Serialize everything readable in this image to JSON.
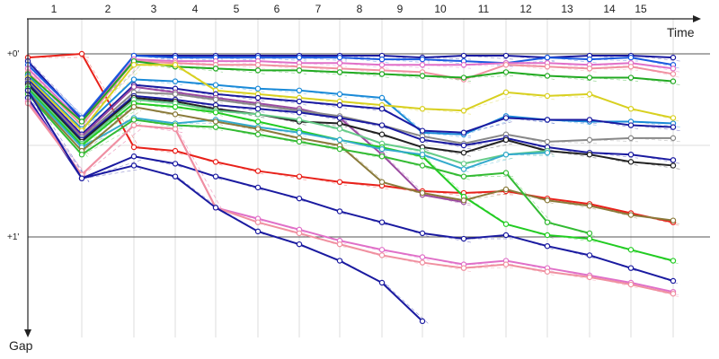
{
  "chart_data": {
    "type": "line",
    "title": "",
    "xlabel": "Time",
    "ylabel": "Gap",
    "x_tick_labels": [
      "1",
      "2",
      "3",
      "4",
      "5",
      "6",
      "7",
      "8",
      "9",
      "10",
      "11",
      "12",
      "13",
      "14",
      "15"
    ],
    "y_tick_labels": [
      {
        "value": 0,
        "label": "+0'"
      },
      {
        "value": 1,
        "label": "+1'"
      }
    ],
    "xlim": [
      1,
      16.0
    ],
    "ylim": [
      0,
      1.46
    ],
    "y_inverted": true,
    "grid": true,
    "legend": "none",
    "series": [
      {
        "color": "#e8211a",
        "values": [
          0.02,
          0.0,
          0.51,
          0.53,
          0.59,
          0.64,
          0.67,
          0.7,
          0.72,
          0.75,
          0.76,
          0.75,
          0.79,
          0.82,
          0.87,
          0.92
        ]
      },
      {
        "color": "#1a1aa0",
        "values": [
          0.04,
          0.36,
          0.01,
          0.01,
          0.01,
          0.01,
          0.01,
          0.01,
          0.01,
          0.02,
          0.01,
          0.01,
          0.02,
          0.01,
          0.01,
          0.02
        ]
      },
      {
        "color": "#1a5ae0",
        "values": [
          0.06,
          0.35,
          0.01,
          0.02,
          0.02,
          0.02,
          0.02,
          0.02,
          0.03,
          0.03,
          0.04,
          0.05,
          0.02,
          0.03,
          0.02,
          0.06
        ]
      },
      {
        "color": "#e070c8",
        "values": [
          0.08,
          0.37,
          0.03,
          0.04,
          0.04,
          0.04,
          0.05,
          0.05,
          0.06,
          0.06,
          0.06,
          0.05,
          0.05,
          0.06,
          0.05,
          0.08
        ]
      },
      {
        "color": "#f090a0",
        "values": [
          0.1,
          0.39,
          0.04,
          0.05,
          0.06,
          0.06,
          0.07,
          0.08,
          0.09,
          0.1,
          0.14,
          0.06,
          0.07,
          0.08,
          0.07,
          0.11
        ]
      },
      {
        "color": "#22aa22",
        "values": [
          0.11,
          0.37,
          0.04,
          0.07,
          0.08,
          0.09,
          0.09,
          0.1,
          0.11,
          0.12,
          0.13,
          0.1,
          0.12,
          0.13,
          0.13,
          0.15
        ]
      },
      {
        "color": "#1a8ad8",
        "values": [
          0.12,
          0.41,
          0.14,
          0.15,
          0.17,
          0.19,
          0.2,
          0.22,
          0.24,
          0.43,
          0.44,
          0.34,
          0.36,
          0.37,
          0.37,
          0.38
        ]
      },
      {
        "color": "#d8d020",
        "values": [
          0.13,
          0.42,
          0.06,
          0.06,
          0.2,
          0.22,
          0.24,
          0.26,
          0.28,
          0.3,
          0.31,
          0.21,
          0.23,
          0.22,
          0.3,
          0.35
        ]
      },
      {
        "color": "#1a1aa0",
        "values": [
          0.14,
          0.44,
          0.17,
          0.19,
          0.22,
          0.24,
          0.26,
          0.28,
          0.3,
          0.42,
          0.43,
          0.35,
          0.36,
          0.36,
          0.39,
          0.4
        ]
      },
      {
        "color": "#9a4aa0",
        "values": [
          0.15,
          0.45,
          0.18,
          0.21,
          0.24,
          0.27,
          0.3,
          0.35,
          0.55,
          0.77,
          0.81,
          0.0,
          0.0,
          0.0,
          0.0,
          0.0
        ]
      },
      {
        "color": "#888888",
        "values": [
          0.15,
          0.46,
          0.21,
          0.22,
          0.25,
          0.28,
          0.31,
          0.34,
          0.39,
          0.45,
          0.49,
          0.44,
          0.48,
          0.47,
          0.46,
          0.46
        ]
      },
      {
        "color": "#1a1aa0",
        "values": [
          0.16,
          0.47,
          0.23,
          0.25,
          0.28,
          0.3,
          0.32,
          0.35,
          0.39,
          0.47,
          0.5,
          0.46,
          0.51,
          0.54,
          0.55,
          0.58
        ]
      },
      {
        "color": "#222222",
        "values": [
          0.17,
          0.48,
          0.24,
          0.26,
          0.3,
          0.33,
          0.37,
          0.38,
          0.44,
          0.51,
          0.54,
          0.47,
          0.53,
          0.55,
          0.59,
          0.61
        ]
      },
      {
        "color": "#66cc88",
        "values": [
          0.18,
          0.49,
          0.25,
          0.27,
          0.31,
          0.33,
          0.36,
          0.41,
          0.49,
          0.53,
          0.6,
          0.55,
          0.53,
          0.0,
          0.0,
          0.0
        ]
      },
      {
        "color": "#22cc22",
        "values": [
          0.19,
          0.5,
          0.27,
          0.29,
          0.32,
          0.37,
          0.42,
          0.47,
          0.51,
          0.56,
          0.78,
          0.93,
          0.99,
          1.01,
          1.07,
          1.13
        ]
      },
      {
        "color": "#33aacc",
        "values": [
          0.2,
          0.51,
          0.35,
          0.38,
          0.36,
          0.4,
          0.43,
          0.47,
          0.52,
          0.55,
          0.63,
          0.55,
          0.54,
          0.0,
          0.0,
          0.0
        ]
      },
      {
        "color": "#8a7a3a",
        "values": [
          0.21,
          0.53,
          0.29,
          0.33,
          0.37,
          0.41,
          0.46,
          0.5,
          0.7,
          0.76,
          0.8,
          0.74,
          0.8,
          0.83,
          0.88,
          0.91
        ]
      },
      {
        "color": "#33bb33",
        "values": [
          0.22,
          0.55,
          0.36,
          0.39,
          0.4,
          0.44,
          0.48,
          0.52,
          0.56,
          0.61,
          0.67,
          0.65,
          0.92,
          0.98,
          0.0,
          0.0
        ]
      },
      {
        "color": "#1a1aa0",
        "values": [
          0.24,
          0.68,
          0.56,
          0.6,
          0.67,
          0.73,
          0.79,
          0.86,
          0.92,
          0.98,
          1.01,
          0.99,
          1.05,
          1.1,
          1.17,
          1.24
        ]
      },
      {
        "color": "#e070c8",
        "values": [
          0.26,
          0.66,
          0.39,
          0.41,
          0.84,
          0.9,
          0.96,
          1.02,
          1.07,
          1.11,
          1.15,
          1.13,
          1.17,
          1.21,
          1.25,
          1.3
        ]
      },
      {
        "color": "#f090a0",
        "values": [
          0.27,
          0.66,
          0.39,
          0.41,
          0.84,
          0.92,
          0.98,
          1.04,
          1.1,
          1.14,
          1.17,
          1.15,
          1.19,
          1.22,
          1.26,
          1.31
        ]
      },
      {
        "color": "#1a1aa0",
        "values": [
          0.2,
          0.68,
          0.61,
          0.67,
          0.84,
          0.97,
          1.04,
          1.13,
          1.25,
          1.46,
          0.0,
          0.0,
          0.0,
          0.0,
          0.0,
          0.0
        ]
      }
    ]
  }
}
